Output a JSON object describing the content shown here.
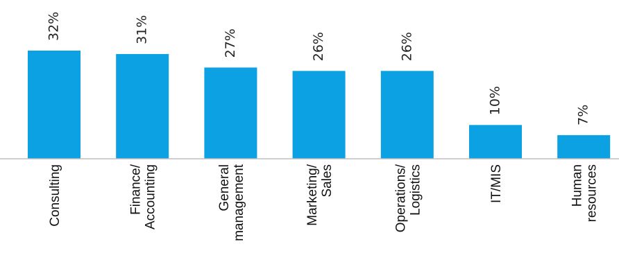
{
  "chart_data": {
    "type": "bar",
    "categories": [
      [
        "Consulting"
      ],
      [
        "Finance/",
        "Accounting"
      ],
      [
        "General",
        "management"
      ],
      [
        "Marketing/",
        "Sales"
      ],
      [
        "Operations/",
        "Logistics"
      ],
      [
        "IT/MIS"
      ],
      [
        "Human",
        "resources"
      ]
    ],
    "values": [
      32,
      31,
      27,
      26,
      26,
      10,
      7
    ],
    "data_labels": [
      "32%",
      "31%",
      "27%",
      "26%",
      "26%",
      "10%",
      "7%"
    ],
    "title": "",
    "xlabel": "",
    "ylabel": "",
    "ylim": [
      0,
      32
    ],
    "grid": false,
    "legend": "none",
    "bar_color": "#0ba1e2",
    "axis_color": "#bfbfbf"
  }
}
